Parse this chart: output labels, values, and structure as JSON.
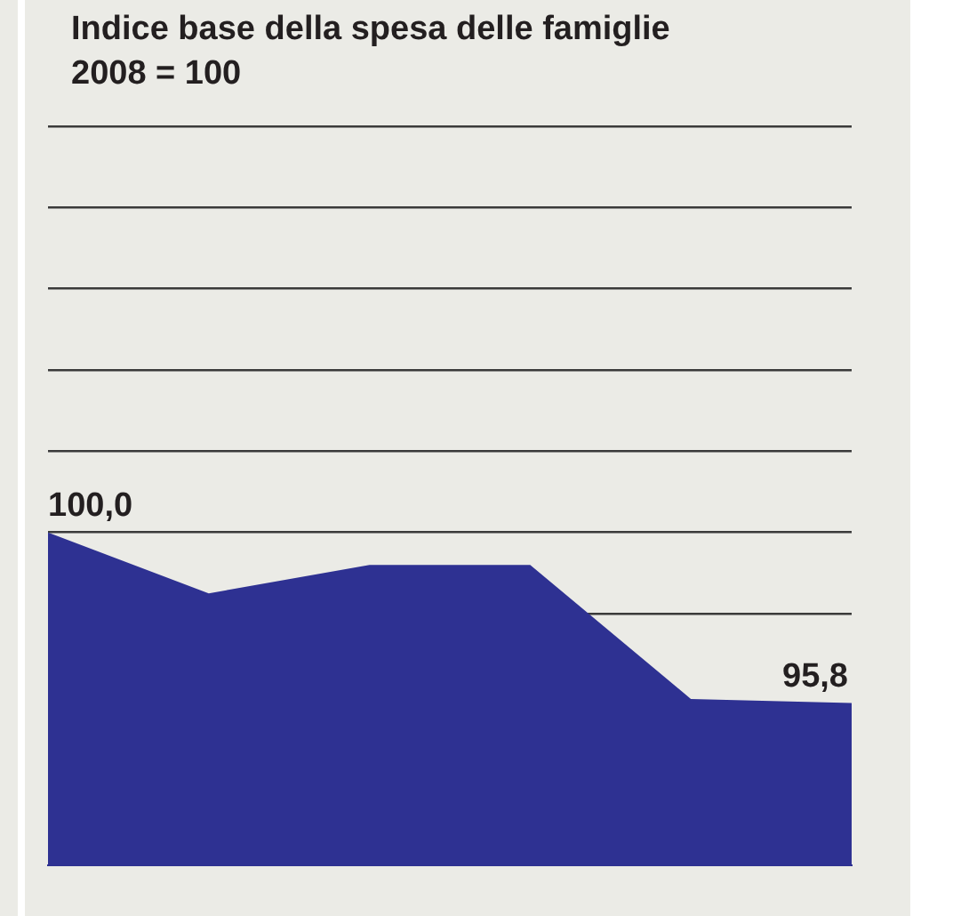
{
  "chart_data": {
    "type": "area",
    "title": "Indice base della spesa delle famiglie",
    "subtitle": "2008 = 100",
    "categories": [
      null,
      null,
      null,
      null,
      null,
      null
    ],
    "values": [
      100.0,
      98.5,
      99.2,
      99.2,
      95.9,
      95.8
    ],
    "value_labels": [
      "100,0",
      null,
      null,
      null,
      null,
      "95,8"
    ],
    "color": "#2e3192",
    "ylim": [
      91.8,
      110
    ],
    "yticks": [
      {
        "value": 98,
        "label": null
      },
      {
        "value": 100,
        "label": null
      },
      {
        "value": 102,
        "label": null
      },
      {
        "value": 104,
        "label": null
      },
      {
        "value": 106,
        "label": null
      },
      {
        "value": 108,
        "label": null
      },
      {
        "value": 110,
        "label": null
      }
    ],
    "grid": "y"
  }
}
